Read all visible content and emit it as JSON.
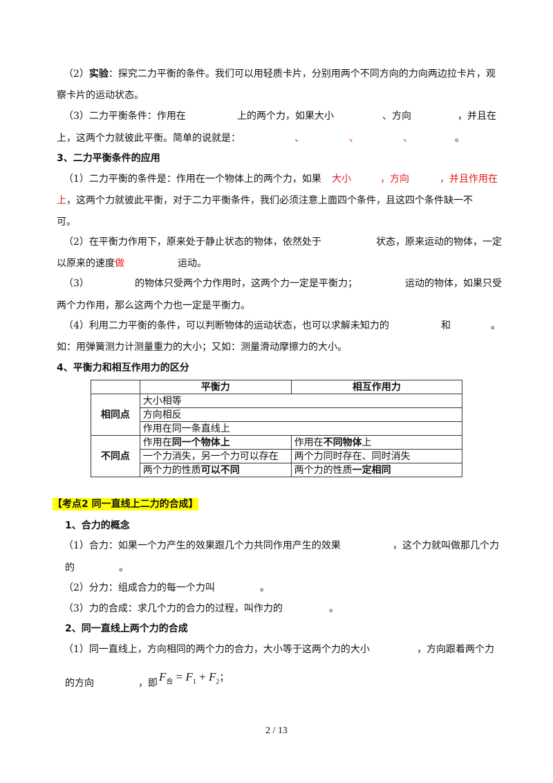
{
  "s1": {
    "p2_num": "（2）",
    "p2_bold": "实验",
    "p2_text": "：探究二力平衡的条件。我们可以用轻质卡片，分别用两个不同方向的力向两边拉卡片，观",
    "p2_cont": "察卡片的运动状态。",
    "p3_a": "（3）二力平衡条件：作用在",
    "p3_b": "上的两个力，如果大小",
    "p3_c": "、方向",
    "p3_d": "，并且在",
    "p3_e": "上，这两个力就彼此平衡。简单的说就是：",
    "p3_sep": "、",
    "p3_end": "。"
  },
  "s3": {
    "heading": "3、二力平衡条件的应用",
    "p1_a": "（1）二力平衡的条件是：作用在一个物体上的两个力，如果",
    "p1_red1": "大小",
    "p1_red2": "，方向",
    "p1_red3": "，并且作用在",
    "p1_red4": "上",
    "p1_b": "，这两个力就彼此平衡，对于二力平衡条件，我们必须注意上面四个条件，且这四个条件缺一不",
    "p1_c": "可。",
    "p2_a": "（2）在平衡力作用下，原来处于静止状态的物体，依然处于",
    "p2_b": "状态，原来运动的物体，一定",
    "p2_c": "以原来的速度",
    "p2_red": "做",
    "p2_d": "运动。",
    "p3_a": "（3）",
    "p3_b": "的物体只受两个力作用时，这两个力一定是平衡力；",
    "p3_c": "运动的物体，如果只受",
    "p3_d": "两个力作用，那么这两个力也一定是平衡力。",
    "p4_a": "（4）利用二力平衡的条件，可以判断物体的运动状态，也可以求解未知力的",
    "p4_b": "和",
    "p4_c": "。",
    "p4_d": "如：用弹簧测力计测量重力的大小；又如：测量滑动摩擦力的大小。"
  },
  "s4": {
    "heading": "4、平衡力和相互作用力的区分",
    "table": {
      "headers": [
        "平衡力",
        "相互作用力"
      ],
      "same_label": "相同点",
      "same_rows": [
        "大小相等",
        "方向相反",
        "作用在同一条直线上"
      ],
      "diff_label": "不同点",
      "diff_rows": [
        {
          "left_a": "作用在",
          "left_b": "同一个物体上",
          "right_a": "作用在",
          "right_b": "不同物体",
          "right_c": "上"
        },
        {
          "left_a": "一个力消失，另一个力可以存在",
          "right_a": "两个力同时存在、同时消失"
        },
        {
          "left_a": "两个力的性质",
          "left_b": "可以不同",
          "right_a": "两个力的性质",
          "right_b": "一定相同"
        }
      ]
    }
  },
  "k2": {
    "title": "【考点2  同一直线上二力的合成】",
    "h1": "1、合力的概念",
    "p1_a": "（1）合力：如果一个力产生的效果跟几个力共同作用产生的效果",
    "p1_b": "，这个力就叫做那几个力",
    "p1_c": "的",
    "p1_d": "。",
    "p2_a": "（2）分力：组成合力的每一个力叫",
    "p2_b": "。",
    "p3_a": "（3）力的合成：求几个力的合力的过程，叫作力的",
    "p3_b": "。",
    "h2": "2、同一直线上两个力的合成",
    "q1_a": "（1）同一直线上，方向相同的两个力的合力，大小等于这两个力的大小",
    "q1_b": "，方向跟着两个力",
    "q1_c": "的方向",
    "q1_d": "，即",
    "formula": {
      "F": "F",
      "he": "合",
      "eq": " = ",
      "F1": "F",
      "s1": "1",
      "plus": " + ",
      "F2": "F",
      "s2": "2",
      "end": "；"
    }
  },
  "footer": {
    "page": "2  /  13"
  },
  "colors": {
    "highlight": "#ffff00",
    "red_text": "#e8161b"
  }
}
